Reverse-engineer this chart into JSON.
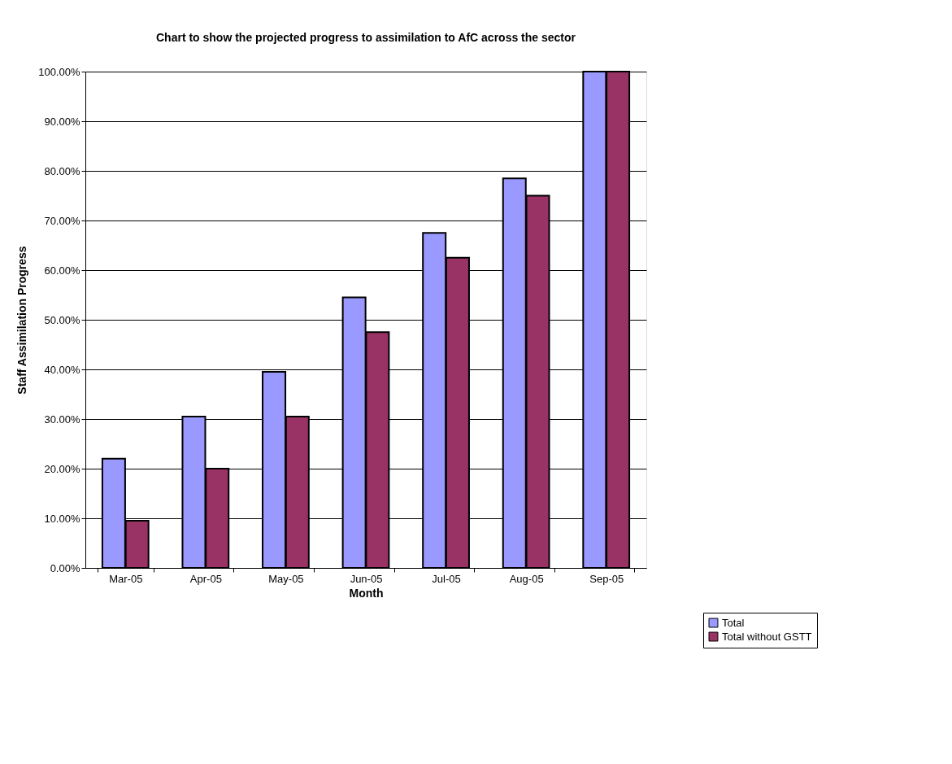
{
  "chart_data": {
    "type": "bar",
    "title": "Chart to show the projected progress to assimilation to AfC across the sector",
    "xlabel": "Month",
    "ylabel": "Staff Assimilation Progress",
    "categories": [
      "Mar-05",
      "Apr-05",
      "May-05",
      "Jun-05",
      "Jul-05",
      "Aug-05",
      "Sep-05"
    ],
    "series": [
      {
        "name": "Total",
        "color": "#9999ff",
        "values": [
          22,
          30.5,
          39.5,
          54.5,
          67.5,
          78.5,
          100
        ]
      },
      {
        "name": "Total without GSTT",
        "color": "#993366",
        "values": [
          9.5,
          20,
          30.5,
          47.5,
          62.5,
          75,
          100
        ]
      }
    ],
    "ylim": [
      0,
      100
    ],
    "yticks": [
      {
        "value": 0,
        "label": "0.00%"
      },
      {
        "value": 10,
        "label": "10.00%"
      },
      {
        "value": 20,
        "label": "20.00%"
      },
      {
        "value": 30,
        "label": "30.00%"
      },
      {
        "value": 40,
        "label": "40.00%"
      },
      {
        "value": 50,
        "label": "50.00%"
      },
      {
        "value": 60,
        "label": "60.00%"
      },
      {
        "value": 70,
        "label": "70.00%"
      },
      {
        "value": 80,
        "label": "80.00%"
      },
      {
        "value": 90,
        "label": "90.00%"
      },
      {
        "value": 100,
        "label": "100.00%"
      }
    ],
    "grid": "y",
    "legend": "bottom right"
  }
}
